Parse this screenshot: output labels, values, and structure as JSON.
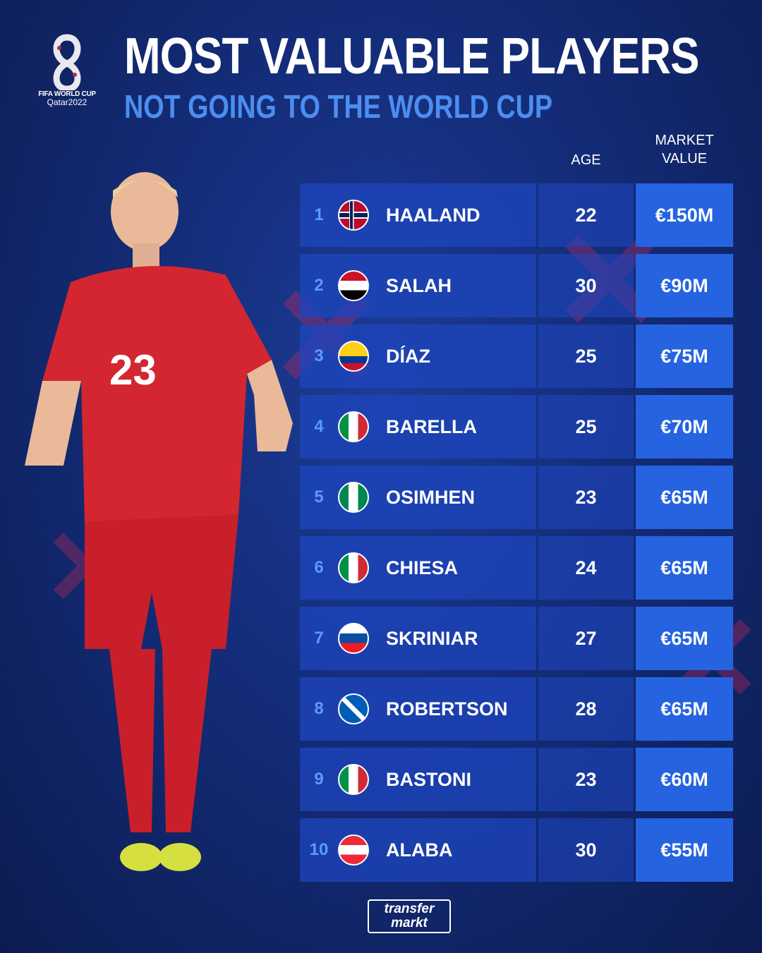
{
  "logo": {
    "line1": "FIFA WORLD CUP",
    "line2": "Qatar2022"
  },
  "title": "MOST VALUABLE PLAYERS",
  "subtitle": "NOT GOING TO THE WORLD CUP",
  "headers": {
    "age": "AGE",
    "market_value_1": "MARKET",
    "market_value_2": "VALUE"
  },
  "players": [
    {
      "rank": "1",
      "flag": "norway-flag",
      "name": "HAALAND",
      "age": "22",
      "value": "€150M"
    },
    {
      "rank": "2",
      "flag": "egypt-flag",
      "name": "SALAH",
      "age": "30",
      "value": "€90M"
    },
    {
      "rank": "3",
      "flag": "colombia-flag",
      "name": "DÍAZ",
      "age": "25",
      "value": "€75M"
    },
    {
      "rank": "4",
      "flag": "italy-flag",
      "name": "BARELLA",
      "age": "25",
      "value": "€70M"
    },
    {
      "rank": "5",
      "flag": "nigeria-flag",
      "name": "OSIMHEN",
      "age": "23",
      "value": "€65M"
    },
    {
      "rank": "6",
      "flag": "italy-flag",
      "name": "CHIESA",
      "age": "24",
      "value": "€65M"
    },
    {
      "rank": "7",
      "flag": "slovakia-flag",
      "name": "SKRINIAR",
      "age": "27",
      "value": "€65M"
    },
    {
      "rank": "8",
      "flag": "scotland-flag",
      "name": "ROBERTSON",
      "age": "28",
      "value": "€65M"
    },
    {
      "rank": "9",
      "flag": "italy-flag",
      "name": "BASTONI",
      "age": "23",
      "value": "€60M"
    },
    {
      "rank": "10",
      "flag": "austria-flag",
      "name": "ALABA",
      "age": "30",
      "value": "€55M"
    }
  ],
  "player_photo": {
    "shirt_number": "23"
  },
  "brand": {
    "line1": "transfer",
    "line2": "markt"
  },
  "colors": {
    "background": "#142c78",
    "accent": "#4b8ef0",
    "value_cell": "#2563e0",
    "rank": "#5a9cf5"
  }
}
